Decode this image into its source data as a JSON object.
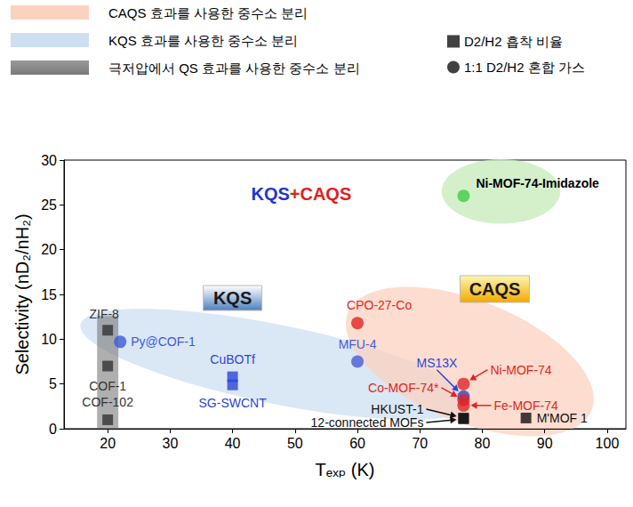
{
  "chart_data": {
    "type": "scatter",
    "x_label": "Tₑₓₚ (K)",
    "y_label": "Selectivity (nD₂/nH₂)",
    "xlim": [
      13,
      103
    ],
    "xticks": [
      20,
      30,
      40,
      50,
      60,
      70,
      80,
      90,
      100
    ],
    "ylim": [
      0,
      30
    ],
    "yticks": [
      0,
      5,
      10,
      15,
      20,
      25,
      30
    ],
    "grid": false,
    "legend": "upper right",
    "region_legend": [
      {
        "label": "CAQS 효과를 사용한 중수소 분리",
        "color": "#fbd2bf"
      },
      {
        "label": "KQS 효과를 사용한 중수소 분리",
        "color": "#cddff1"
      },
      {
        "label": "극저압에서 QS 효과를 사용한 중수소 분리",
        "color": "#7a7a7a"
      }
    ],
    "region_labels": {
      "kqs": "KQS",
      "caqs": "CAQS",
      "combined": "KQS+CAQS"
    },
    "series": [
      {
        "name": "D2/H2 흡착 비율",
        "marker": "square",
        "color": "#111111",
        "labels": [
          "ZIF-8",
          "COF-1",
          "COF-102",
          "CuBOTf",
          "SG-SWCNT",
          "HKUST-1",
          "12-connected MOFs",
          "M'MOF 1"
        ],
        "x": [
          20,
          20,
          20,
          40,
          40,
          77,
          77,
          87
        ],
        "values": [
          11,
          7,
          1,
          5.8,
          4.9,
          1.2,
          1.1,
          1.2
        ],
        "colors": [
          "#333333",
          "#333333",
          "#333333",
          "#2a46d6",
          "#2a46d6",
          "#111111",
          "#111111",
          "#111111"
        ]
      },
      {
        "name": "1:1 D2/H2 혼합 가스",
        "marker": "circle",
        "color": "#111111",
        "labels": [
          "Py@COF-1",
          "MFU-4",
          "CPO-27-Co",
          "MS13X",
          "Ni-MOF-74",
          "Co-MOF-74*",
          "Fe-MOF-74",
          "Ni-MOF-74-Imidazole"
        ],
        "x": [
          22,
          60,
          60,
          77,
          77,
          77,
          77,
          77
        ],
        "values": [
          9.7,
          7.5,
          11.8,
          3.6,
          5.0,
          3.2,
          2.6,
          26
        ],
        "colors": [
          "#3c5ad8",
          "#4a5bd0",
          "#e02424",
          "#2a46d6",
          "#e02424",
          "#e02424",
          "#e02424",
          "#44cc44"
        ]
      }
    ]
  }
}
